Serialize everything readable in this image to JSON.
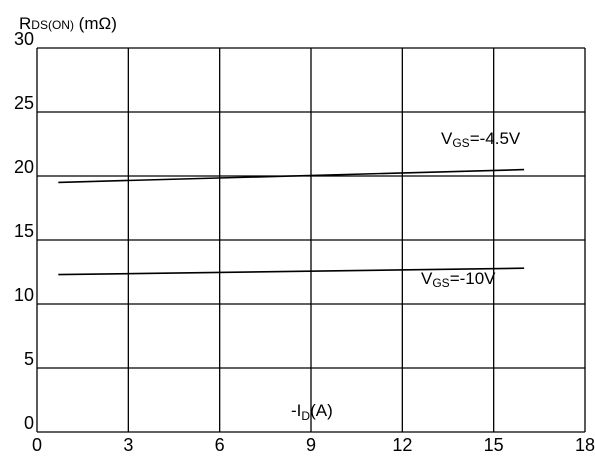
{
  "chart_data": {
    "type": "line",
    "ylabel": {
      "main": "R",
      "sub": "DS(ON)",
      "unit": " (mΩ)"
    },
    "xlabel": {
      "main": "-I",
      "sub": "D",
      "unit": "(A)"
    },
    "xlim": [
      0,
      18
    ],
    "ylim": [
      0,
      30
    ],
    "x_ticks": [
      "0",
      "3",
      "6",
      "9",
      "12",
      "15",
      "18"
    ],
    "y_ticks": [
      "0",
      "5",
      "10",
      "15",
      "20",
      "25",
      "30"
    ],
    "grid": true,
    "series": [
      {
        "name": "V_GS=-4.5V",
        "label": {
          "main": "V",
          "sub": "GS",
          "rest": "=-4.5V"
        },
        "x": [
          0.7,
          16
        ],
        "y": [
          19.5,
          20.5
        ]
      },
      {
        "name": "V_GS=-10V",
        "label": {
          "main": "V",
          "sub": "GS",
          "rest": "=-10V"
        },
        "x": [
          0.7,
          16
        ],
        "y": [
          12.3,
          12.8
        ]
      }
    ],
    "colors": {
      "line": "#000000",
      "grid": "#000000",
      "background": "#ffffff"
    }
  }
}
